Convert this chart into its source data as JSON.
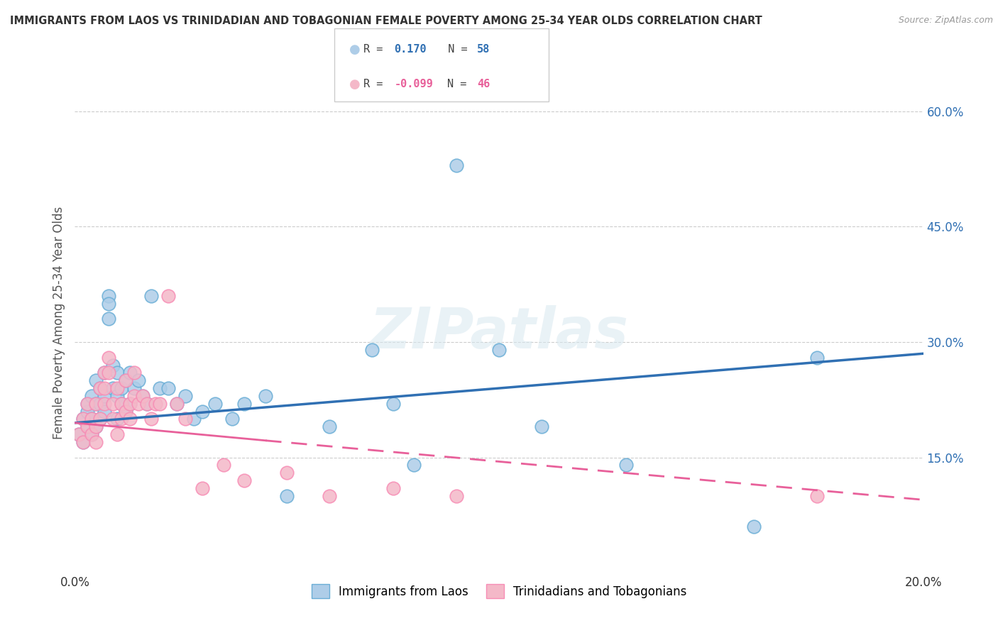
{
  "title": "IMMIGRANTS FROM LAOS VS TRINIDADIAN AND TOBAGONIAN FEMALE POVERTY AMONG 25-34 YEAR OLDS CORRELATION CHART",
  "source": "Source: ZipAtlas.com",
  "ylabel": "Female Poverty Among 25-34 Year Olds",
  "xlim": [
    0.0,
    0.2
  ],
  "ylim": [
    0.0,
    0.65
  ],
  "yticks": [
    0.15,
    0.3,
    0.45,
    0.6
  ],
  "ytick_labels": [
    "15.0%",
    "30.0%",
    "45.0%",
    "60.0%"
  ],
  "xticks": [
    0.0,
    0.05,
    0.1,
    0.15,
    0.2
  ],
  "xtick_labels": [
    "0.0%",
    "",
    "",
    "",
    "20.0%"
  ],
  "watermark": "ZIPatlas",
  "blue_color": "#aecde8",
  "pink_color": "#f4b8c8",
  "blue_edge_color": "#6aaed6",
  "pink_edge_color": "#f78db5",
  "blue_line_color": "#3070b3",
  "pink_line_color": "#e8609a",
  "background_color": "#ffffff",
  "blue_scatter_x": [
    0.001,
    0.002,
    0.002,
    0.003,
    0.003,
    0.003,
    0.004,
    0.004,
    0.004,
    0.005,
    0.005,
    0.005,
    0.006,
    0.006,
    0.006,
    0.007,
    0.007,
    0.007,
    0.008,
    0.008,
    0.008,
    0.009,
    0.009,
    0.01,
    0.01,
    0.01,
    0.011,
    0.011,
    0.012,
    0.012,
    0.013,
    0.013,
    0.014,
    0.015,
    0.016,
    0.017,
    0.018,
    0.02,
    0.022,
    0.024,
    0.026,
    0.028,
    0.03,
    0.033,
    0.037,
    0.04,
    0.045,
    0.05,
    0.06,
    0.07,
    0.075,
    0.08,
    0.09,
    0.1,
    0.11,
    0.13,
    0.16,
    0.175
  ],
  "blue_scatter_y": [
    0.18,
    0.17,
    0.2,
    0.19,
    0.21,
    0.22,
    0.2,
    0.18,
    0.23,
    0.22,
    0.19,
    0.25,
    0.22,
    0.24,
    0.2,
    0.26,
    0.21,
    0.23,
    0.36,
    0.35,
    0.33,
    0.27,
    0.24,
    0.26,
    0.23,
    0.2,
    0.24,
    0.22,
    0.25,
    0.21,
    0.22,
    0.26,
    0.24,
    0.25,
    0.23,
    0.22,
    0.36,
    0.24,
    0.24,
    0.22,
    0.23,
    0.2,
    0.21,
    0.22,
    0.2,
    0.22,
    0.23,
    0.1,
    0.19,
    0.29,
    0.22,
    0.14,
    0.53,
    0.29,
    0.19,
    0.14,
    0.06,
    0.28
  ],
  "pink_scatter_x": [
    0.001,
    0.002,
    0.002,
    0.003,
    0.003,
    0.004,
    0.004,
    0.005,
    0.005,
    0.005,
    0.006,
    0.006,
    0.007,
    0.007,
    0.007,
    0.008,
    0.008,
    0.009,
    0.009,
    0.01,
    0.01,
    0.011,
    0.011,
    0.012,
    0.012,
    0.013,
    0.013,
    0.014,
    0.014,
    0.015,
    0.016,
    0.017,
    0.018,
    0.019,
    0.02,
    0.022,
    0.024,
    0.026,
    0.03,
    0.035,
    0.04,
    0.05,
    0.06,
    0.075,
    0.09,
    0.175
  ],
  "pink_scatter_y": [
    0.18,
    0.17,
    0.2,
    0.19,
    0.22,
    0.18,
    0.2,
    0.17,
    0.22,
    0.19,
    0.24,
    0.2,
    0.24,
    0.22,
    0.26,
    0.26,
    0.28,
    0.22,
    0.2,
    0.24,
    0.18,
    0.22,
    0.2,
    0.25,
    0.21,
    0.22,
    0.2,
    0.23,
    0.26,
    0.22,
    0.23,
    0.22,
    0.2,
    0.22,
    0.22,
    0.36,
    0.22,
    0.2,
    0.11,
    0.14,
    0.12,
    0.13,
    0.1,
    0.11,
    0.1,
    0.1
  ]
}
